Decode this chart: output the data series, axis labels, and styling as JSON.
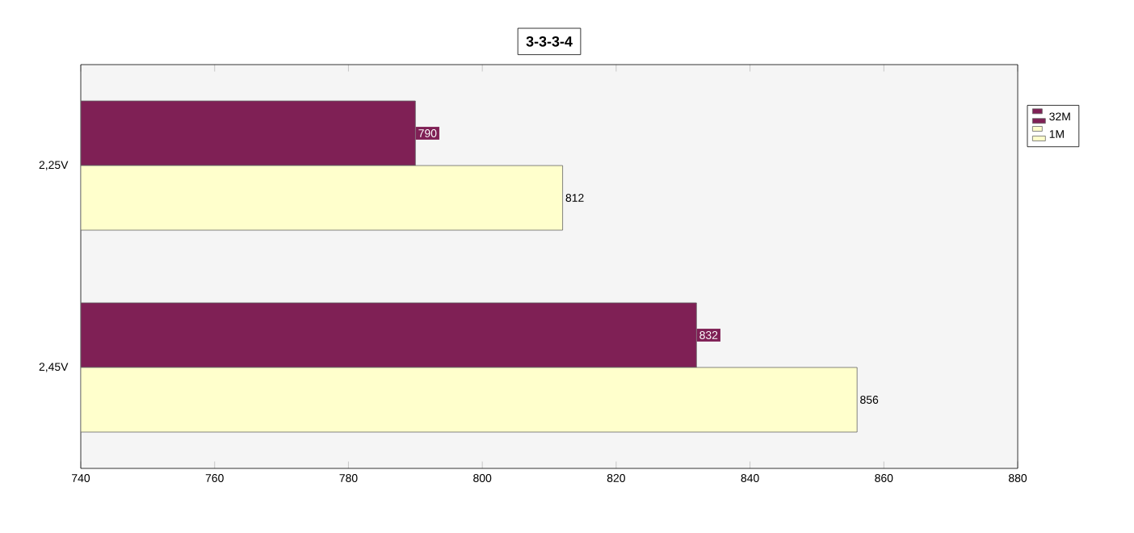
{
  "chart_data": {
    "type": "bar",
    "orientation": "horizontal",
    "title": "3-3-3-4",
    "categories": [
      "2,25V",
      "2,45V"
    ],
    "series": [
      {
        "name": "32M",
        "color": "#7f2055",
        "values": [
          790,
          832
        ]
      },
      {
        "name": "1M",
        "color": "#ffffcc",
        "values": [
          812,
          856
        ]
      }
    ],
    "xlim": [
      740,
      880
    ],
    "xticks": [
      740,
      760,
      780,
      800,
      820,
      840,
      860,
      880
    ],
    "data_labels": true,
    "legend": "right"
  }
}
